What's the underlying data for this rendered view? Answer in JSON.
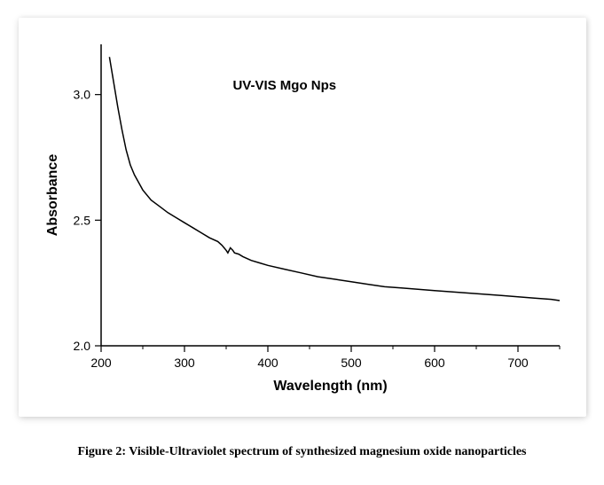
{
  "chart": {
    "type": "line",
    "title": "UV-VIS Mgo Nps",
    "title_fontsize": 15,
    "title_fontweight": "bold",
    "xlabel": "Wavelength (nm)",
    "ylabel": "Absorbance",
    "label_fontsize": 16,
    "label_fontweight": "bold",
    "xlim": [
      200,
      750
    ],
    "ylim": [
      2.0,
      3.2
    ],
    "xtick_positions": [
      200,
      300,
      400,
      500,
      600,
      700
    ],
    "xtick_labels": [
      "200",
      "300",
      "400",
      "500",
      "600",
      "700"
    ],
    "ytick_positions": [
      2.0,
      2.5,
      3.0
    ],
    "ytick_labels": [
      "2.0",
      "2.5",
      "3.0"
    ],
    "tick_fontsize": 14,
    "background_color": "#ffffff",
    "axis_color": "#000000",
    "line_color": "#000000",
    "line_width": 1.5,
    "data_points": [
      [
        210,
        3.15
      ],
      [
        215,
        3.05
      ],
      [
        220,
        2.95
      ],
      [
        225,
        2.86
      ],
      [
        230,
        2.78
      ],
      [
        235,
        2.72
      ],
      [
        240,
        2.68
      ],
      [
        245,
        2.65
      ],
      [
        250,
        2.62
      ],
      [
        260,
        2.58
      ],
      [
        270,
        2.555
      ],
      [
        280,
        2.53
      ],
      [
        290,
        2.51
      ],
      [
        300,
        2.49
      ],
      [
        310,
        2.47
      ],
      [
        320,
        2.45
      ],
      [
        330,
        2.43
      ],
      [
        340,
        2.415
      ],
      [
        345,
        2.4
      ],
      [
        350,
        2.38
      ],
      [
        352,
        2.37
      ],
      [
        355,
        2.39
      ],
      [
        358,
        2.38
      ],
      [
        360,
        2.37
      ],
      [
        365,
        2.365
      ],
      [
        370,
        2.355
      ],
      [
        380,
        2.34
      ],
      [
        390,
        2.33
      ],
      [
        400,
        2.32
      ],
      [
        420,
        2.305
      ],
      [
        440,
        2.29
      ],
      [
        460,
        2.275
      ],
      [
        480,
        2.265
      ],
      [
        500,
        2.255
      ],
      [
        520,
        2.245
      ],
      [
        540,
        2.235
      ],
      [
        560,
        2.23
      ],
      [
        580,
        2.225
      ],
      [
        600,
        2.22
      ],
      [
        620,
        2.215
      ],
      [
        640,
        2.21
      ],
      [
        660,
        2.205
      ],
      [
        680,
        2.2
      ],
      [
        700,
        2.195
      ],
      [
        720,
        2.19
      ],
      [
        740,
        2.185
      ],
      [
        750,
        2.18
      ]
    ]
  },
  "caption": "Figure 2: Visible-Ultraviolet spectrum of synthesized magnesium oxide nanoparticles"
}
